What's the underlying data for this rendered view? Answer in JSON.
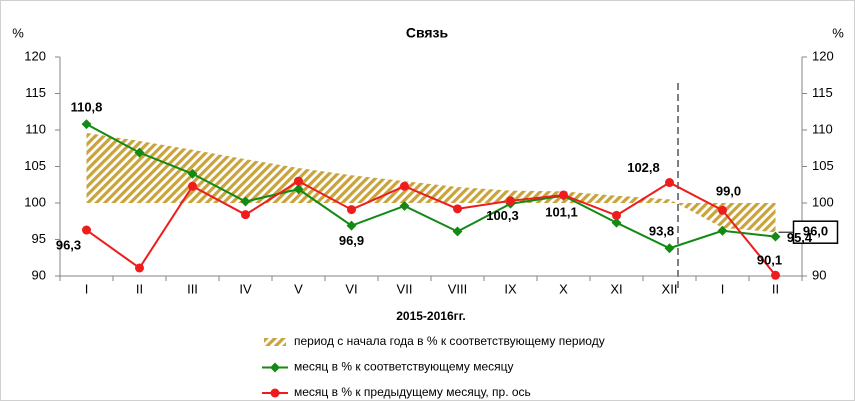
{
  "chart_data": {
    "type": "line",
    "title": "Связь",
    "x_label": "2015-2016гг.",
    "y_label": "%",
    "y2_label": "%",
    "categories": [
      "I",
      "II",
      "III",
      "IV",
      "V",
      "VI",
      "VII",
      "VIII",
      "IX",
      "X",
      "XI",
      "XII",
      "I",
      "II"
    ],
    "ylim": [
      90,
      120
    ],
    "yticks": [
      90,
      95,
      100,
      105,
      110,
      115,
      120
    ],
    "y2lim": [
      90,
      120
    ],
    "y2ticks": [
      90,
      95,
      100,
      105,
      110,
      115,
      120
    ],
    "series": [
      {
        "name": "период с начала года в % к соответствующему периоду",
        "kind": "area",
        "color": "#c9a43c",
        "values": [
          109.6,
          108.5,
          107.3,
          106.0,
          104.8,
          103.8,
          103.0,
          102.2,
          101.7,
          101.6,
          101.0,
          100.5,
          96.6,
          96.0
        ],
        "value_labels": [
          null,
          null,
          null,
          null,
          null,
          null,
          null,
          null,
          null,
          null,
          null,
          null,
          null,
          "96,0"
        ]
      },
      {
        "name": "месяц в % к соответствующему месяцу",
        "kind": "line",
        "color": "#138a13",
        "values": [
          110.8,
          106.9,
          104.0,
          100.2,
          101.9,
          96.9,
          99.6,
          96.1,
          99.9,
          101.0,
          97.3,
          93.8,
          96.2,
          95.4
        ],
        "value_labels": [
          "110,8",
          null,
          null,
          null,
          null,
          "96,9",
          null,
          null,
          null,
          null,
          null,
          "93,8",
          null,
          "95,4"
        ]
      },
      {
        "name": "месяц в % к предыдущему месяцу, пр. ось",
        "kind": "line",
        "axis": "y2",
        "color": "#ee1c1c",
        "values": [
          96.3,
          91.1,
          102.3,
          98.4,
          103.0,
          99.1,
          102.3,
          99.2,
          100.3,
          101.1,
          98.3,
          102.8,
          99.0,
          90.1
        ],
        "value_labels": [
          "96,3",
          null,
          null,
          null,
          null,
          null,
          null,
          null,
          "100,3",
          "101,1",
          null,
          "102,8",
          "99,0",
          "90,1"
        ]
      }
    ]
  }
}
